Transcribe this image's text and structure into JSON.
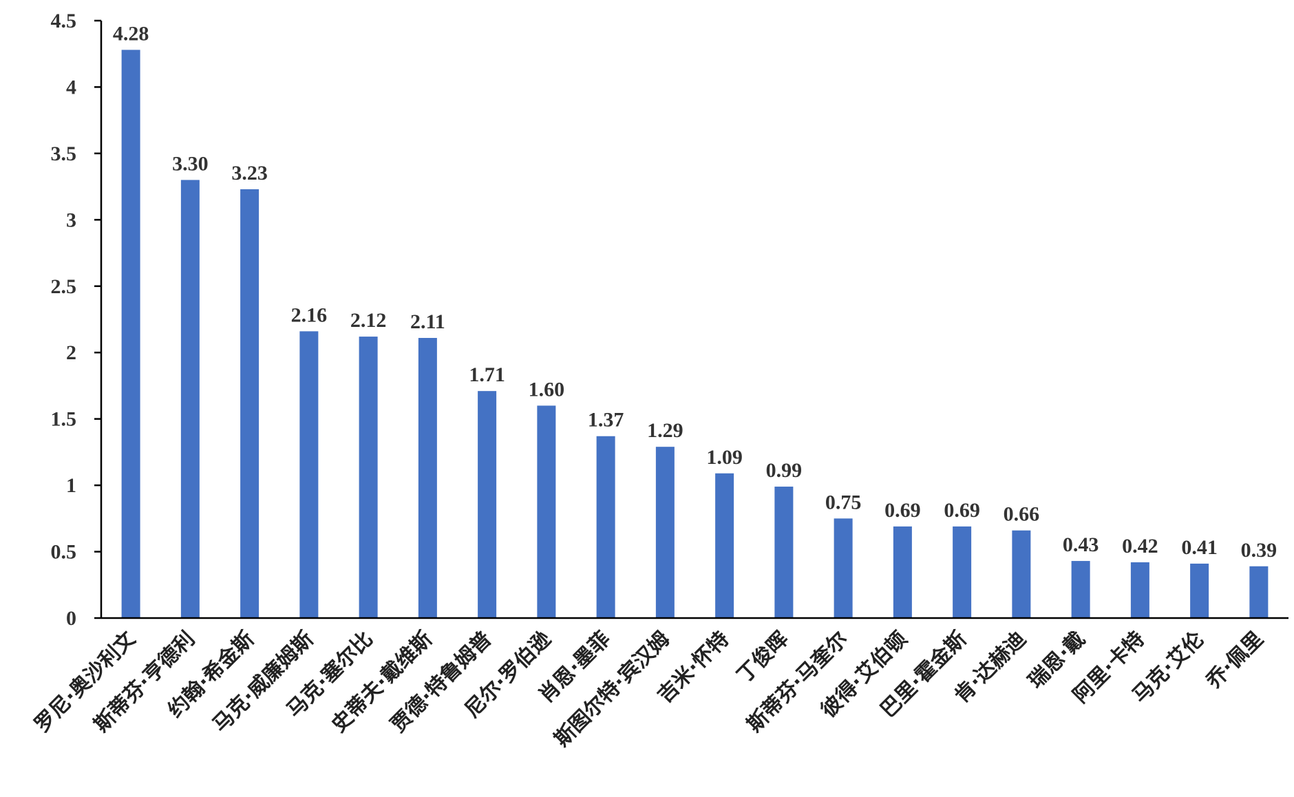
{
  "chart_data": {
    "type": "bar",
    "title": "",
    "xlabel": "",
    "ylabel": "",
    "ylim": [
      0,
      4.5
    ],
    "yticks": [
      "0",
      "0.5",
      "1",
      "1.5",
      "2",
      "2.5",
      "3",
      "3.5",
      "4",
      "4.5"
    ],
    "grid": false,
    "legend": "none",
    "bar_color": "#4472C4",
    "categories": [
      "罗尼·奥沙利文",
      "斯蒂芬·亨德利",
      "约翰·希金斯",
      "马克·威廉姆斯",
      "马克·塞尔比",
      "史蒂夫·戴维斯",
      "贾德·特鲁姆普",
      "尼尔·罗伯逊",
      "肖恩·墨菲",
      "斯图尔特·宾汉姆",
      "吉米·怀特",
      "丁俊晖",
      "斯蒂芬·马奎尔",
      "彼得·艾伯顿",
      "巴里·霍金斯",
      "肯·达赫迪",
      "瑞恩·戴",
      "阿里·卡特",
      "马克·艾伦",
      "乔·佩里"
    ],
    "values": [
      4.28,
      3.3,
      3.23,
      2.16,
      2.12,
      2.11,
      1.71,
      1.6,
      1.37,
      1.29,
      1.09,
      0.99,
      0.75,
      0.69,
      0.69,
      0.66,
      0.43,
      0.42,
      0.41,
      0.39
    ],
    "data_labels": [
      "4.28",
      "3.30",
      "3.23",
      "2.16",
      "2.12",
      "2.11",
      "1.71",
      "1.60",
      "1.37",
      "1.29",
      "1.09",
      "0.99",
      "0.75",
      "0.69",
      "0.69",
      "0.66",
      "0.43",
      "0.42",
      "0.41",
      "0.39"
    ]
  }
}
